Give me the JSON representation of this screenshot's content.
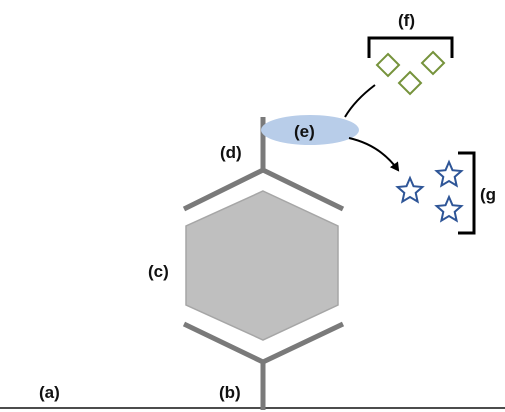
{
  "labels": {
    "a": "(a)",
    "b": "(b)",
    "c": "(c)",
    "d": "(d)",
    "e": "(e)",
    "f": "(f)",
    "g": "(g"
  },
  "colors": {
    "membrane": "#808080",
    "stalk": "#7a7a7a",
    "hexagon_fill": "#bfbfbf",
    "hexagon_stroke": "#a6a6a6",
    "ellipse_fill": "#b8cde9",
    "diamond_stroke": "#76933c",
    "star_stroke": "#2e5597",
    "bracket": "#000000",
    "arrow": "#000000"
  },
  "shapes": {
    "diamond_icon": "diamond-icon",
    "star_icon": "star-icon"
  }
}
